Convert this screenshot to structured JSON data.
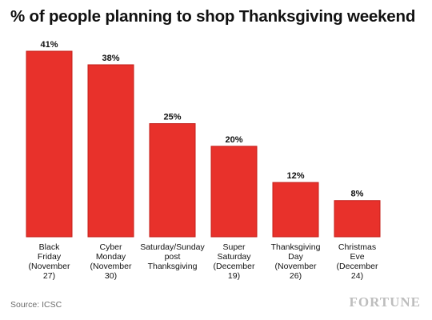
{
  "title": "% of people planning to shop Thanksgiving weekend",
  "source": "Source: ICSC",
  "brand": "FORTUNE",
  "colors": {
    "bar": "#e8312b",
    "bar_outline": "#c41f1a",
    "text": "#111111",
    "source": "#6b6b6b",
    "brand": "#bdbdbd"
  },
  "chart_data": {
    "type": "bar",
    "categories": [
      [
        "Black",
        "Friday",
        "(November",
        "27)"
      ],
      [
        "Cyber",
        "Monday",
        "(November",
        "30)"
      ],
      [
        "Saturday/Sunday",
        "post",
        "Thanksgiving"
      ],
      [
        "Super",
        "Saturday",
        "(December",
        "19)"
      ],
      [
        "Thanksgiving",
        "Day",
        "(November",
        "26)"
      ],
      [
        "Christmas",
        "Eve",
        "(December",
        "24)"
      ]
    ],
    "values": [
      41,
      38,
      25,
      20,
      12,
      8
    ],
    "value_labels": [
      "41%",
      "38%",
      "25%",
      "20%",
      "12%",
      "8%"
    ],
    "ylim": [
      0,
      41
    ],
    "grid": false,
    "legend": "none"
  }
}
